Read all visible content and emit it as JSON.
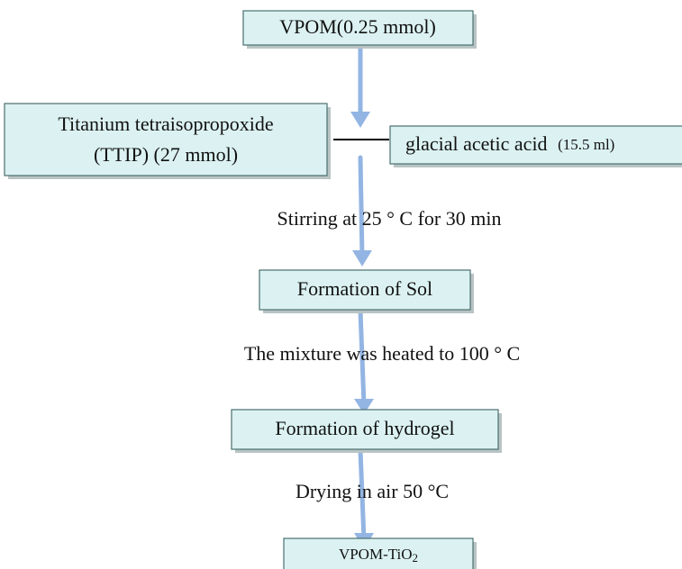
{
  "nodes": [
    {
      "label": "VPOM(0.25 mmol)"
    },
    {
      "label": [
        "Titanium tetraisopropoxide",
        "(TTIP) (27 mmol)"
      ]
    },
    {
      "label": "glacial acetic acid",
      "note": "(15.5 ml)"
    },
    {
      "label": "Formation of Sol"
    },
    {
      "label": "Formation of hydrogel"
    },
    {
      "label": "VPOM-TiO",
      "subscript": "2"
    }
  ],
  "steps": [
    "Stirring at 25 ° C  for 30 min",
    "The mixture was heated to 100 ° C",
    "Drying in air  50 °C"
  ]
}
